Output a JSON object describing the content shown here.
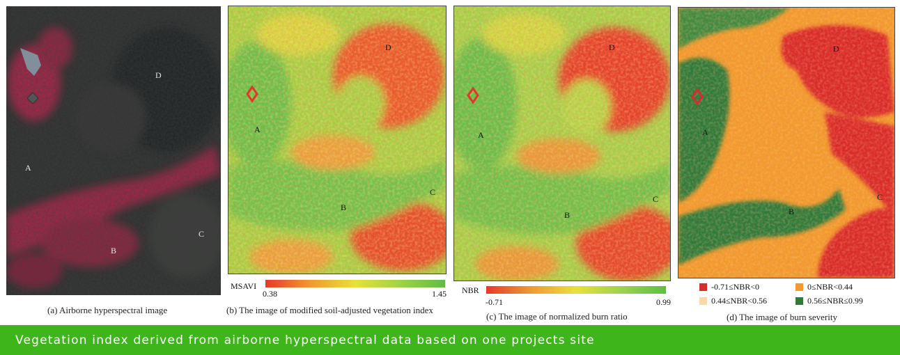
{
  "panels": {
    "a": {
      "caption": "(a) Airborne hyperspectral image",
      "points": [
        "D",
        "A",
        "B",
        "C"
      ]
    },
    "b": {
      "caption": "(b) The image of modified soil-adjusted vegetation index",
      "points": [
        "D",
        "A",
        "B",
        "C"
      ],
      "colorbar": {
        "label": "MSAVI",
        "min": "0.38",
        "max": "1.45"
      }
    },
    "c": {
      "caption": "(c) The image of normalized burn ratio",
      "points": [
        "D",
        "A",
        "B",
        "C"
      ],
      "colorbar": {
        "label": "NBR",
        "min": "-0.71",
        "max": "0.99"
      }
    },
    "d": {
      "caption": "(d) The image of burn severity",
      "points": [
        "D",
        "A",
        "B",
        "C"
      ],
      "legend": [
        {
          "label": "-0.71≤NBR<0",
          "color": "#d92b2b"
        },
        {
          "label": "0≤NBR<0.44",
          "color": "#f29a2e"
        },
        {
          "label": "0.44≤NBR<0.56",
          "color": "#f8d9a8"
        },
        {
          "label": "0.56≤NBR≤0.99",
          "color": "#2f7a3a"
        }
      ]
    }
  },
  "colors": {
    "banner": "#3fb51c",
    "veg_low": "#e8382a",
    "veg_mid": "#e9e13a",
    "veg_high": "#5fbe45"
  },
  "banner": {
    "text": "Vegetation index derived from airborne hyperspectral data based on one projects site"
  }
}
